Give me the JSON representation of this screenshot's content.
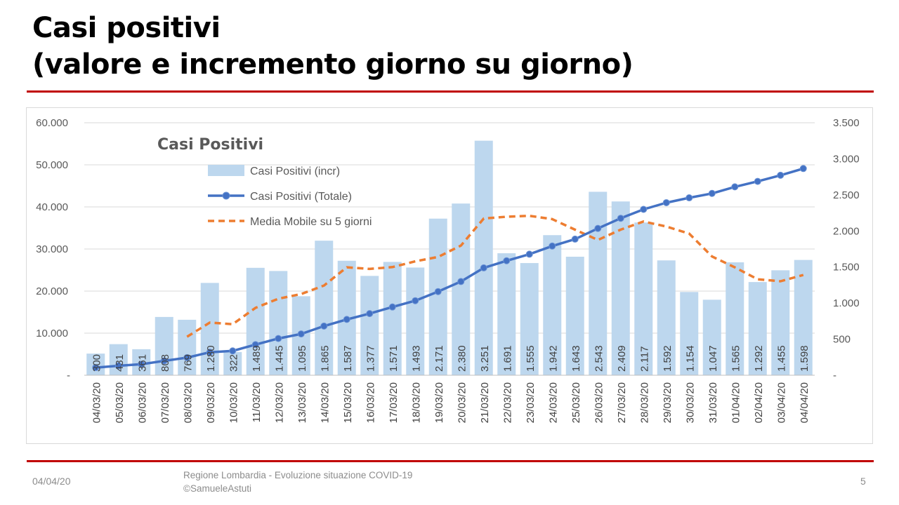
{
  "slide": {
    "title_line1": "Casi positivi",
    "title_line2": "(valore e incremento giorno su giorno)"
  },
  "footer": {
    "date": "04/04/20",
    "source_line1": "Regione Lombardia - Evoluzione situazione COVID-19",
    "source_line2": "©SamueleAstuti",
    "page": "5"
  },
  "colors": {
    "rule": "#c00000",
    "bars": "#bdd7ee",
    "total_line": "#4472c4",
    "moving_avg": "#ed7d31",
    "grid": "#d9d9d9"
  },
  "chart_data": {
    "type": "bar",
    "title": "Casi Positivi",
    "categories": [
      "04/03/20",
      "05/03/20",
      "06/03/20",
      "07/03/20",
      "08/03/20",
      "09/03/20",
      "10/03/20",
      "11/03/20",
      "12/03/20",
      "13/03/20",
      "14/03/20",
      "15/03/20",
      "16/03/20",
      "17/03/20",
      "18/03/20",
      "19/03/20",
      "20/03/20",
      "21/03/20",
      "22/03/20",
      "23/03/20",
      "24/03/20",
      "25/03/20",
      "26/03/20",
      "27/03/20",
      "28/03/20",
      "29/03/20",
      "30/03/20",
      "31/03/20",
      "01/04/20",
      "02/04/20",
      "03/04/20",
      "04/04/20"
    ],
    "left_axis": {
      "ticks": [
        "-",
        "10.000",
        "20.000",
        "30.000",
        "40.000",
        "50.000",
        "60.000"
      ],
      "ylim": [
        0,
        60000
      ]
    },
    "right_axis": {
      "ticks": [
        "-",
        "500",
        "1.000",
        "1.500",
        "2.000",
        "2.500",
        "3.000",
        "3.500"
      ],
      "ylim": [
        0,
        3500
      ]
    },
    "legend_position": "top-left",
    "series": [
      {
        "name": "Casi Positivi (incr)",
        "kind": "bar",
        "axis": "right",
        "values": [
          300,
          431,
          361,
          808,
          769,
          1280,
          322,
          1489,
          1445,
          1095,
          1865,
          1587,
          1377,
          1571,
          1493,
          2171,
          2380,
          3251,
          1691,
          1555,
          1942,
          1643,
          2543,
          2409,
          2117,
          1592,
          1154,
          1047,
          1565,
          1292,
          1455,
          1598
        ],
        "labels": [
          "300",
          "431",
          "361",
          "808",
          "769",
          "1.280",
          "322",
          "1.489",
          "1.445",
          "1.095",
          "1.865",
          "1.587",
          "1.377",
          "1.571",
          "1.493",
          "2.171",
          "2.380",
          "3.251",
          "1.691",
          "1.555",
          "1.942",
          "1.643",
          "2.543",
          "2.409",
          "2.117",
          "1.592",
          "1.154",
          "1.047",
          "1.565",
          "1.292",
          "1.455",
          "1.598"
        ]
      },
      {
        "name": "Casi Positivi (Totale)",
        "kind": "line",
        "axis": "left",
        "values": [
          1820,
          2251,
          2612,
          3420,
          4189,
          5469,
          5791,
          7280,
          8725,
          9820,
          11685,
          13272,
          14649,
          16220,
          17713,
          19884,
          22264,
          25515,
          27206,
          28761,
          30703,
          32346,
          34889,
          37298,
          39415,
          41007,
          42161,
          43208,
          44773,
          46065,
          47520,
          49118
        ]
      },
      {
        "name": "Media Mobile su 5 giorni",
        "kind": "line-dashed",
        "axis": "right",
        "values": [
          null,
          null,
          null,
          null,
          534,
          730,
          708,
          934,
          1061,
          1126,
          1243,
          1496,
          1474,
          1499,
          1579,
          1640,
          1798,
          2173,
          2197,
          2210,
          2164,
          2017,
          1875,
          2018,
          2131,
          2061,
          1963,
          1646,
          1495,
          1330,
          1303,
          1390
        ]
      }
    ]
  }
}
